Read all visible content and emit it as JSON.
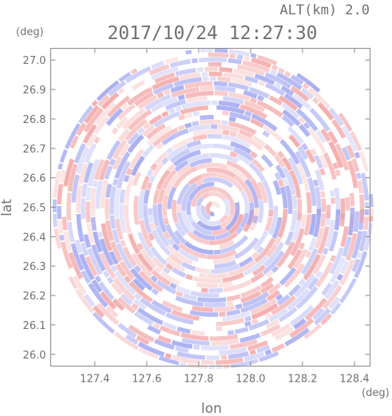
{
  "chart_data": {
    "type": "heatmap",
    "subtype": "polar radar PPI scan (difference field, blue-white-red)",
    "title": "2017/10/24 12:27:30",
    "altitude_label": "ALT(km) 2.0",
    "xlabel": "lon",
    "ylabel": "lat",
    "x_unit": "(deg)",
    "y_unit": "(deg)",
    "xlim": [
      127.23,
      128.46
    ],
    "ylim": [
      25.96,
      27.04
    ],
    "xticks": [
      "127.4",
      "127.6",
      "127.8",
      "128.0",
      "128.2",
      "128.4"
    ],
    "yticks": [
      "27.0",
      "26.9",
      "26.8",
      "26.7",
      "26.6",
      "26.5",
      "26.4",
      "26.3",
      "26.2",
      "26.1",
      "26.0"
    ],
    "center": {
      "lon": 127.855,
      "lat": 26.495
    },
    "radius_deg_lat": 0.545,
    "colormap": {
      "negative": "#9aa0f0",
      "zero": "#ffffff",
      "positive": "#f2a0a0"
    },
    "grid": false
  }
}
